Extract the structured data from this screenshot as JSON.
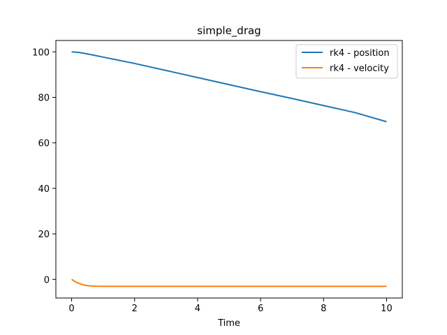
{
  "chart_data": {
    "type": "line",
    "title": "simple_drag",
    "xlabel": "Time",
    "ylabel": "",
    "xlim": [
      -0.5,
      10.5
    ],
    "ylim": [
      -8.2,
      105
    ],
    "xticks": [
      0,
      2,
      4,
      6,
      8,
      10
    ],
    "yticks": [
      0,
      20,
      40,
      60,
      80,
      100
    ],
    "grid": false,
    "legend_position": "top-right",
    "series": [
      {
        "name": "rk4 - position",
        "color": "#1f77b4",
        "x": [
          0,
          0.25,
          0.5,
          0.75,
          1,
          1.5,
          2,
          3,
          4,
          5,
          6,
          7,
          8,
          9,
          10
        ],
        "y": [
          100,
          99.7,
          99.1,
          98.4,
          97.7,
          96.3,
          94.9,
          91.8,
          88.7,
          85.6,
          82.5,
          79.5,
          76.4,
          73.3,
          69.3
        ]
      },
      {
        "name": "rk4 - velocity",
        "color": "#ff7f0e",
        "x": [
          0,
          0.1,
          0.2,
          0.3,
          0.4,
          0.5,
          0.6,
          0.8,
          1,
          1.5,
          2,
          4,
          6,
          8,
          10
        ],
        "y": [
          0,
          -0.9,
          -1.6,
          -2.1,
          -2.5,
          -2.75,
          -2.9,
          -3.02,
          -3.06,
          -3.08,
          -3.08,
          -3.08,
          -3.08,
          -3.08,
          -3.08
        ]
      }
    ]
  }
}
